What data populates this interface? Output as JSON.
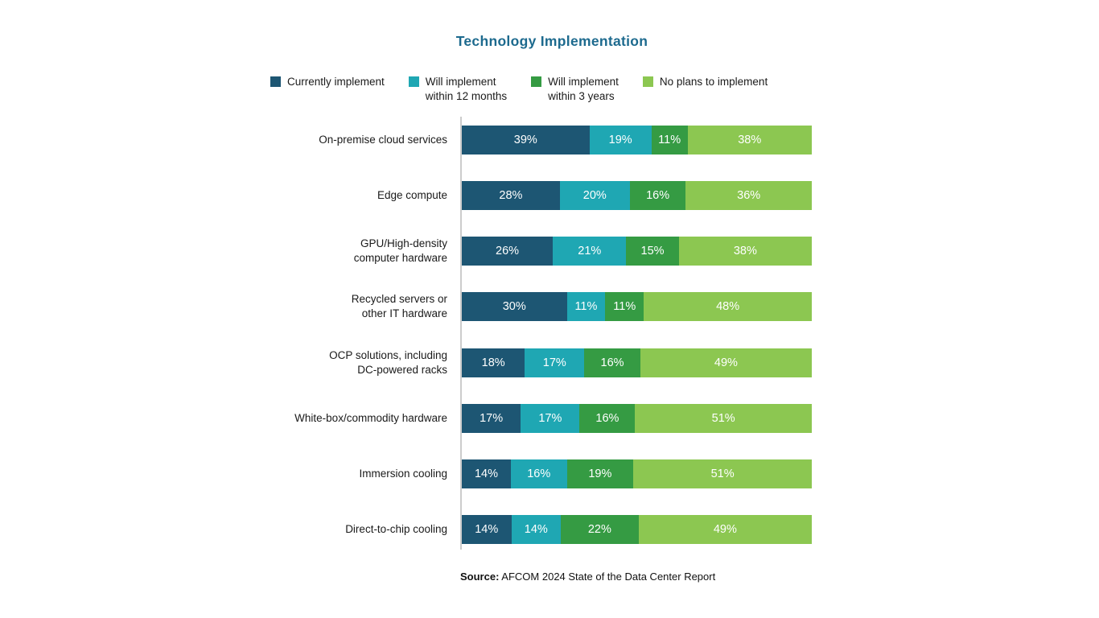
{
  "title": "Technology Implementation",
  "colors": {
    "navy": "#1d5673",
    "teal": "#1fa7b3",
    "green": "#359b43",
    "light_green": "#8cc751",
    "title_text": "#1d6a8e",
    "axis_line": "#cccccc",
    "label_text": "#1a1a1a",
    "bar_value_text": "#ffffff"
  },
  "legend": [
    {
      "label": "Currently implement",
      "color": "#1d5673"
    },
    {
      "label": "Will implement\nwithin 12 months",
      "color": "#1fa7b3"
    },
    {
      "label": "Will implement\nwithin 3 years",
      "color": "#359b43"
    },
    {
      "label": "No plans to implement",
      "color": "#8cc751"
    }
  ],
  "chart_data": {
    "type": "bar",
    "orientation": "horizontal",
    "stacked": true,
    "normalized_to_full_width": true,
    "title": "Technology Implementation",
    "value_suffix": "%",
    "legend_position": "top",
    "grid": false,
    "categories": [
      "On-premise cloud services",
      "Edge compute",
      "GPU/High-density\ncomputer hardware",
      "Recycled servers or\nother IT hardware",
      "OCP solutions, including\nDC-powered racks",
      "White-box/commodity hardware",
      "Immersion cooling",
      "Direct-to-chip cooling"
    ],
    "series": [
      {
        "name": "Currently implement",
        "color": "#1d5673",
        "values": [
          39,
          28,
          26,
          30,
          18,
          17,
          14,
          14
        ]
      },
      {
        "name": "Will implement within 12 months",
        "color": "#1fa7b3",
        "values": [
          19,
          20,
          21,
          11,
          17,
          17,
          16,
          14
        ]
      },
      {
        "name": "Will implement within 3 years",
        "color": "#359b43",
        "values": [
          11,
          16,
          15,
          11,
          16,
          16,
          19,
          22
        ]
      },
      {
        "name": "No plans to implement",
        "color": "#8cc751",
        "values": [
          38,
          36,
          38,
          48,
          49,
          51,
          51,
          49
        ]
      }
    ]
  },
  "source": {
    "prefix": "Source:",
    "text": " AFCOM 2024 State of the Data Center Report"
  }
}
